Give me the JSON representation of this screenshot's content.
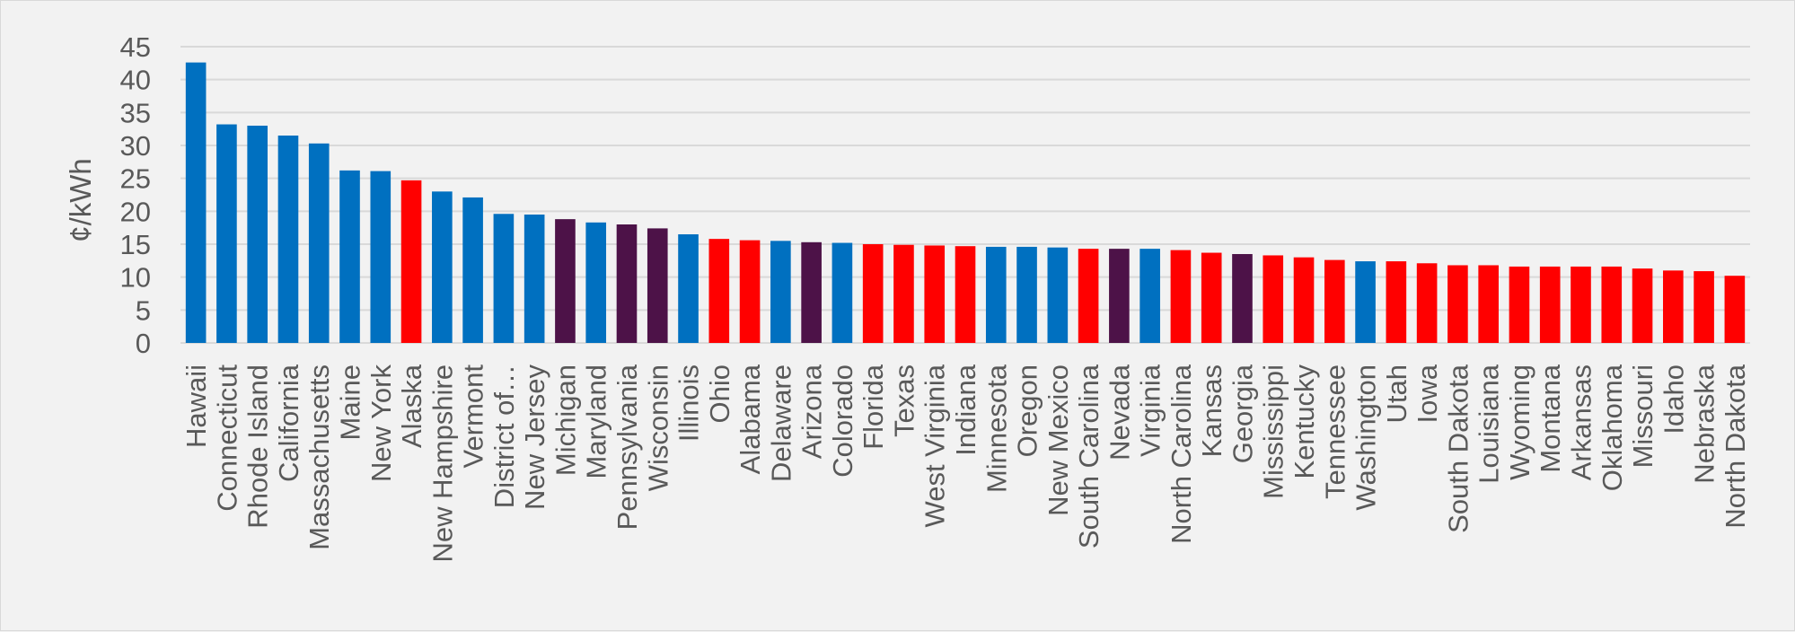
{
  "colors": {
    "blue": "#0070c0",
    "red": "#ff0000",
    "purple": "#4d1248",
    "grid": "#d9d9d9",
    "text": "#595959",
    "background": "#f2f2f2"
  },
  "chart_data": {
    "type": "bar",
    "title": "",
    "xlabel": "",
    "ylabel": "¢/kWh",
    "ylim": [
      0,
      45
    ],
    "yticks": [
      0,
      5,
      10,
      15,
      20,
      25,
      30,
      35,
      40,
      45
    ],
    "grid": true,
    "legend": "none",
    "categories": [
      "Hawaii",
      "Connecticut",
      "Rhode Island",
      "California",
      "Massachusetts",
      "Maine",
      "New York",
      "Alaska",
      "New Hampshire",
      "Vermont",
      "District of…",
      "New Jersey",
      "Michigan",
      "Maryland",
      "Pennsylvania",
      "Wisconsin",
      "Illinois",
      "Ohio",
      "Alabama",
      "Delaware",
      "Arizona",
      "Colorado",
      "Florida",
      "Texas",
      "West Virginia",
      "Indiana",
      "Minnesota",
      "Oregon",
      "New Mexico",
      "South Carolina",
      "Nevada",
      "Virginia",
      "North Carolina",
      "Kansas",
      "Georgia",
      "Mississippi",
      "Kentucky",
      "Tennessee",
      "Washington",
      "Utah",
      "Iowa",
      "South Dakota",
      "Louisiana",
      "Wyoming",
      "Montana",
      "Arkansas",
      "Oklahoma",
      "Missouri",
      "Idaho",
      "Nebraska",
      "North Dakota"
    ],
    "values": [
      42.6,
      33.2,
      33.0,
      31.5,
      30.3,
      26.2,
      26.1,
      24.7,
      23.0,
      22.1,
      19.6,
      19.5,
      18.8,
      18.3,
      18.0,
      17.4,
      16.5,
      15.8,
      15.6,
      15.5,
      15.3,
      15.2,
      15.0,
      14.9,
      14.8,
      14.7,
      14.6,
      14.6,
      14.5,
      14.3,
      14.3,
      14.3,
      14.1,
      13.7,
      13.5,
      13.3,
      13.0,
      12.6,
      12.4,
      12.4,
      12.1,
      11.8,
      11.8,
      11.6,
      11.6,
      11.6,
      11.6,
      11.3,
      11.0,
      10.9,
      10.2
    ],
    "bar_colors": [
      "blue",
      "blue",
      "blue",
      "blue",
      "blue",
      "blue",
      "blue",
      "red",
      "blue",
      "blue",
      "blue",
      "blue",
      "purple",
      "blue",
      "purple",
      "purple",
      "blue",
      "red",
      "red",
      "blue",
      "purple",
      "blue",
      "red",
      "red",
      "red",
      "red",
      "blue",
      "blue",
      "blue",
      "red",
      "purple",
      "blue",
      "red",
      "red",
      "purple",
      "red",
      "red",
      "red",
      "blue",
      "red",
      "red",
      "red",
      "red",
      "red",
      "red",
      "red",
      "red",
      "red",
      "red",
      "red",
      "red"
    ]
  }
}
